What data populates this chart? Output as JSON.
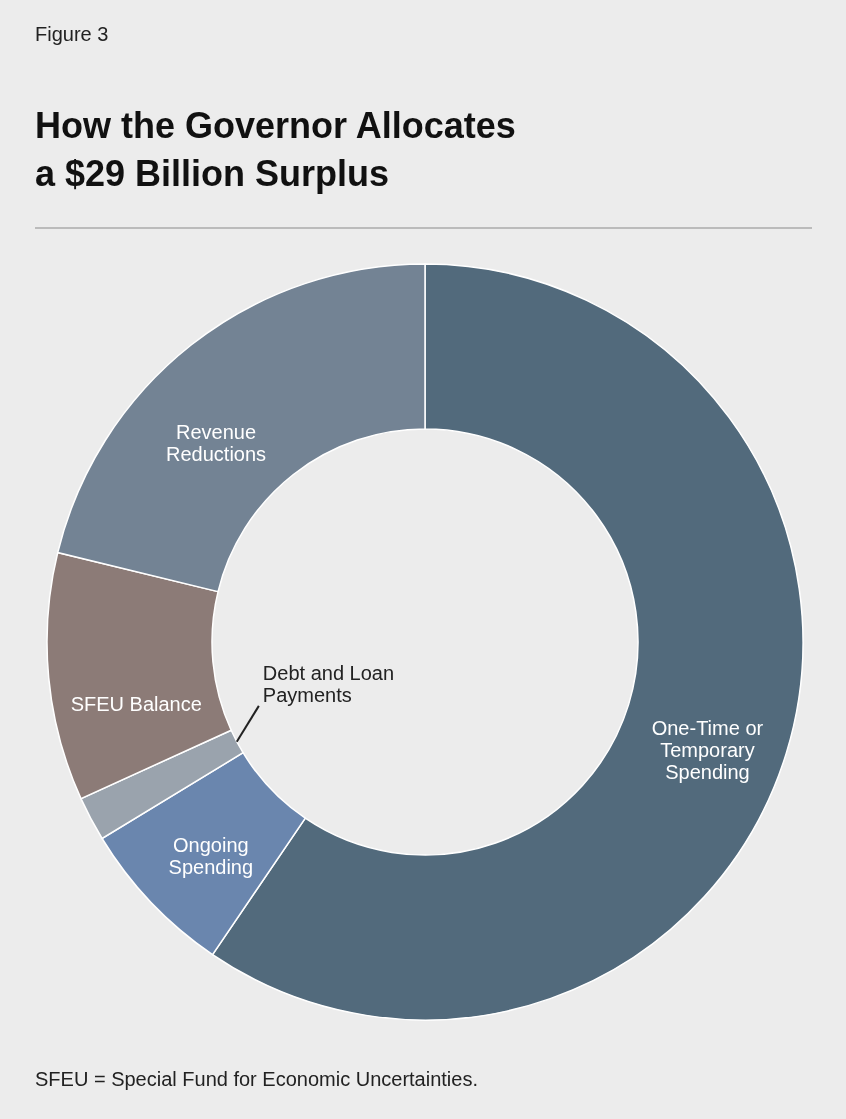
{
  "chart_data": {
    "type": "donut",
    "title": "How the Governor Allocates a $29 Billion Surplus",
    "categories": [
      "One-Time or Temporary Spending",
      "Ongoing Spending",
      "Debt and Loan Payments",
      "SFEU Balance",
      "Revenue Reductions"
    ],
    "values": [
      59.5,
      6.8,
      1.9,
      10.6,
      21.2
    ],
    "colors": [
      "#526a7c",
      "#6a86ae",
      "#9aa3ad",
      "#8c7b77",
      "#738394"
    ],
    "annotations": [
      "Figure 3",
      "SFEU = Special Fund for Economic Uncertainties."
    ]
  }
}
